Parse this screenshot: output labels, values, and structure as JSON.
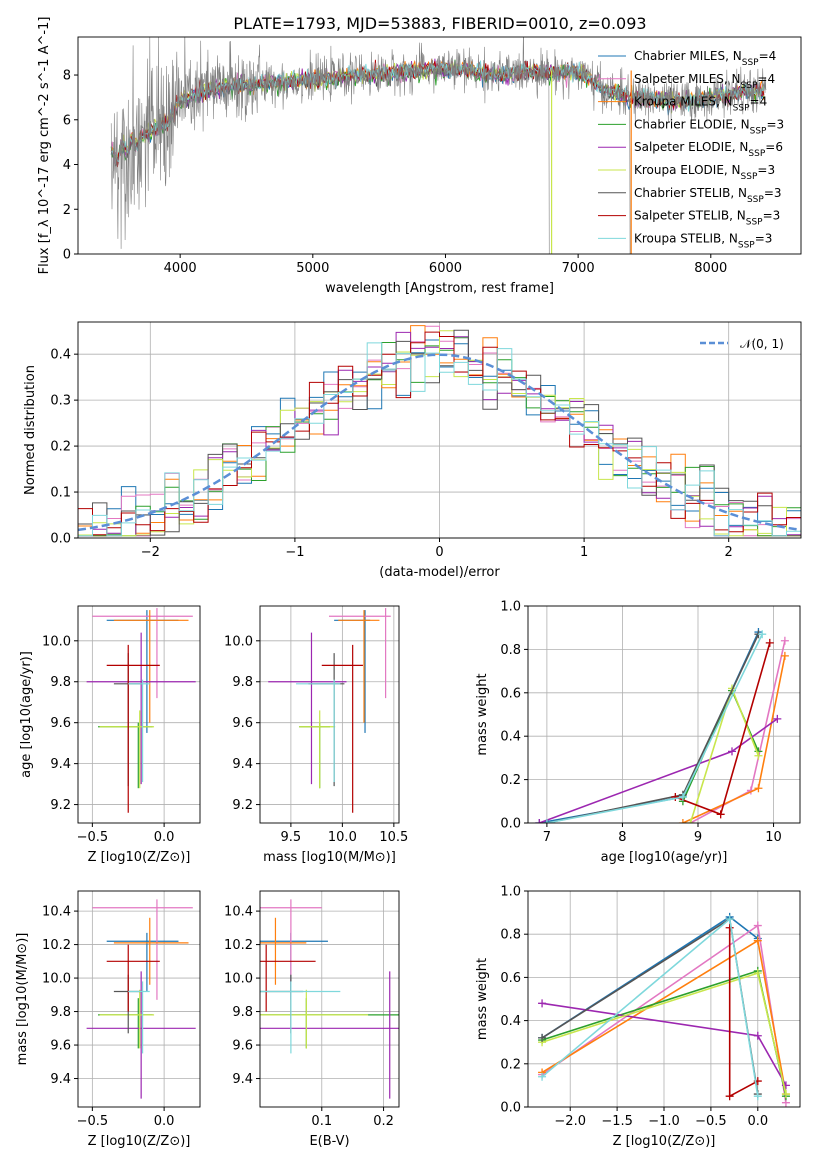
{
  "colors": {
    "Chabrier MILES": "#1f77b4",
    "Salpeter MILES": "#e377c2",
    "Kroupa MILES": "#ff7f0e",
    "Chabrier ELODIE": "#2ca02c",
    "Salpeter ELODIE": "#9c27b0",
    "Kroupa ELODIE": "#c8e64c",
    "Chabrier STELIB": "#555555",
    "Salpeter STELIB": "#b30000",
    "Kroupa STELIB": "#7fd8dc",
    "data": "#808080",
    "normal": "#5b8fd6"
  },
  "chart_data": [
    {
      "type": "line",
      "title": "PLATE=1793, MJD=53883, FIBERID=0010, z=0.093",
      "xlabel": "wavelength [Angstrom, rest frame]",
      "ylabel": "Flux [f_λ 10^-17 erg cm^-2 s^-1 A^-1]",
      "xlim": [
        3230,
        8680
      ],
      "ylim": [
        0,
        9.7
      ],
      "xticks": [
        4000,
        5000,
        6000,
        7000,
        8000
      ],
      "yticks": [
        0,
        2,
        4,
        6,
        8
      ],
      "legend": {
        "position": "top-right",
        "entries": [
          {
            "name": "Chabrier MILES",
            "n": "4"
          },
          {
            "name": "Salpeter MILES",
            "n": "4"
          },
          {
            "name": "Kroupa MILES",
            "n": "4"
          },
          {
            "name": "Chabrier ELODIE",
            "n": "3"
          },
          {
            "name": "Salpeter ELODIE",
            "n": "6"
          },
          {
            "name": "Kroupa ELODIE",
            "n": "3"
          },
          {
            "name": "Chabrier STELIB",
            "n": "3"
          },
          {
            "name": "Salpeter STELIB",
            "n": "3"
          },
          {
            "name": "Kroupa STELIB",
            "n": "3"
          }
        ]
      },
      "continuum": {
        "x": [
          3500,
          3600,
          3700,
          3800,
          3900,
          4000,
          4200,
          4400,
          4600,
          4800,
          5000,
          5200,
          5400,
          5600,
          5800,
          6000,
          6200,
          6400,
          6600,
          6800,
          7000,
          7200,
          7400,
          7600,
          7800,
          8000,
          8200,
          8400
        ],
        "y": [
          4.3,
          4.8,
          5.2,
          5.6,
          5.9,
          6.9,
          7.3,
          7.5,
          7.6,
          7.7,
          7.8,
          7.9,
          8.0,
          8.1,
          8.2,
          8.3,
          8.2,
          8.0,
          8.2,
          8.1,
          8.2,
          7.3,
          7.0,
          6.9,
          6.8,
          7.0,
          7.2,
          7.3
        ]
      }
    },
    {
      "type": "histogram",
      "xlabel": "(data-model)/error",
      "ylabel": "Normed distribution",
      "xlim": [
        -2.5,
        2.5
      ],
      "ylim": [
        0,
        0.47
      ],
      "xticks": [
        -2,
        -1,
        0,
        1,
        2
      ],
      "yticks": [
        0.0,
        0.1,
        0.2,
        0.3,
        0.4
      ],
      "legend": {
        "label": "𝒩(0, 1)",
        "position": "top-right"
      },
      "bin_width": 0.1,
      "bin_start": -2.5
    },
    {
      "type": "scatter",
      "xlabel": "Z [log10(Z/Z⊙)]",
      "ylabel": "age [log10(age/yr)]",
      "xlim": [
        -0.6,
        0.25
      ],
      "ylim": [
        9.11,
        10.17
      ],
      "xticks": [
        -0.5,
        0.0
      ],
      "yticks": [
        9.2,
        9.4,
        9.6,
        9.8,
        10.0
      ]
    },
    {
      "type": "scatter",
      "xlabel": "mass [log10(M/M⊙)]",
      "ylabel": "",
      "xlim": [
        9.2,
        10.55
      ],
      "ylim": [
        9.11,
        10.17
      ],
      "xticks": [
        9.5,
        10.0,
        10.5
      ],
      "yticks": [
        9.2,
        9.4,
        9.6,
        9.8,
        10.0
      ]
    },
    {
      "type": "line",
      "xlabel": "age [log10(age/yr)]",
      "ylabel": "mass weight",
      "xlim": [
        6.75,
        10.35
      ],
      "ylim": [
        0,
        1.0
      ],
      "xticks": [
        7,
        8,
        9,
        10
      ],
      "yticks": [
        0.0,
        0.2,
        0.4,
        0.6,
        0.8,
        1.0
      ]
    },
    {
      "type": "scatter",
      "xlabel": "Z [log10(Z/Z⊙)]",
      "ylabel": "mass [log10(M/M⊙)]",
      "xlim": [
        -0.6,
        0.25
      ],
      "ylim": [
        9.23,
        10.52
      ],
      "xticks": [
        -0.5,
        0.0
      ],
      "yticks": [
        9.4,
        9.6,
        9.8,
        10.0,
        10.2,
        10.4
      ]
    },
    {
      "type": "scatter",
      "xlabel": "E(B-V)",
      "ylabel": "",
      "xlim": [
        0.0,
        0.225
      ],
      "ylim": [
        9.23,
        10.52
      ],
      "xticks": [
        0.1,
        0.2
      ],
      "yticks": [
        9.4,
        9.6,
        9.8,
        10.0,
        10.2,
        10.4
      ]
    },
    {
      "type": "line",
      "xlabel": "Z [log10(Z/Z⊙)]",
      "ylabel": "mass weight",
      "xlim": [
        -2.45,
        0.45
      ],
      "ylim": [
        0,
        1.0
      ],
      "xticks": [
        -2.0,
        -1.5,
        -1.0,
        -0.5,
        0.0
      ],
      "yticks": [
        0.0,
        0.2,
        0.4,
        0.6,
        0.8,
        1.0
      ]
    }
  ],
  "models": [
    {
      "name": "Chabrier MILES",
      "Z": -0.12,
      "Zerr": [
        0.28,
        0.22
      ],
      "age": 10.1,
      "ageErr": [
        0.55,
        0.05
      ],
      "mass": 10.22,
      "massErr": [
        0.3,
        0.05
      ],
      "ebv": 0.05,
      "ebvErr": [
        0.25,
        0.06
      ],
      "ages": [
        6.9,
        8.8,
        9.8
      ],
      "wA": [
        0.0,
        0.12,
        0.88
      ],
      "Zs": [
        -2.3,
        -0.3,
        0.0
      ],
      "wZ": [
        0.32,
        0.88,
        0.78
      ]
    },
    {
      "name": "Salpeter MILES",
      "Z": -0.05,
      "Zerr": [
        0.45,
        0.25
      ],
      "age": 10.12,
      "ageErr": [
        0.4,
        0.04
      ],
      "mass": 10.42,
      "massErr": [
        0.55,
        0.05
      ],
      "ebv": 0.05,
      "ebvErr": [
        0.2,
        0.05
      ],
      "ages": [
        8.9,
        9.7,
        10.15
      ],
      "wA": [
        0.0,
        0.15,
        0.84
      ],
      "Zs": [
        -2.3,
        0.0,
        0.3
      ],
      "wZ": [
        0.15,
        0.84,
        0.02
      ]
    },
    {
      "name": "Kroupa MILES",
      "Z": -0.1,
      "Zerr": [
        0.25,
        0.27
      ],
      "age": 10.1,
      "ageErr": [
        0.5,
        0.05
      ],
      "mass": 10.21,
      "massErr": [
        0.25,
        0.15
      ],
      "ebv": 0.025,
      "ebvErr": [
        0.15,
        0.05
      ],
      "ages": [
        8.8,
        9.8,
        10.15
      ],
      "wA": [
        0.0,
        0.16,
        0.77
      ],
      "Zs": [
        -2.3,
        0.0,
        0.3
      ],
      "wZ": [
        0.16,
        0.77,
        0.06
      ]
    },
    {
      "name": "Chabrier ELODIE",
      "Z": -0.18,
      "Zerr": [
        0.28,
        0.1
      ],
      "age": 9.58,
      "ageErr": [
        0.3,
        0.02
      ],
      "mass": 9.78,
      "massErr": [
        0.2,
        0.1
      ],
      "ebv": 0.075,
      "ebvErr": [
        0.22,
        0.16
      ],
      "ages": [
        8.8,
        9.45,
        9.8
      ],
      "wA": [
        0.1,
        0.61,
        0.33
      ],
      "Zs": [
        -2.3,
        0.0,
        0.3
      ],
      "wZ": [
        0.31,
        0.63,
        0.05
      ]
    },
    {
      "name": "Salpeter ELODIE",
      "Z": -0.16,
      "Zerr": [
        0.38,
        0.38
      ],
      "age": 9.8,
      "ageErr": [
        0.5,
        0.24
      ],
      "mass": 9.7,
      "massErr": [
        0.42,
        0.34
      ],
      "ebv": 0.21,
      "ebvErr": [
        0.44,
        0.2
      ],
      "ages": [
        6.9,
        9.45,
        10.05
      ],
      "wA": [
        0.0,
        0.33,
        0.48
      ],
      "Zs": [
        -2.3,
        0.0,
        0.3
      ],
      "wZ": [
        0.48,
        0.33,
        0.1
      ]
    },
    {
      "name": "Kroupa ELODIE",
      "Z": -0.17,
      "Zerr": [
        0.28,
        0.1
      ],
      "age": 9.58,
      "ageErr": [
        0.3,
        0.08
      ],
      "mass": 9.78,
      "massErr": [
        0.2,
        0.15
      ],
      "ebv": 0.075,
      "ebvErr": [
        0.22,
        0.1
      ],
      "ages": [
        8.9,
        9.45,
        9.8
      ],
      "wA": [
        0.0,
        0.62,
        0.31
      ],
      "Zs": [
        -2.3,
        0.0,
        0.3
      ],
      "wZ": [
        0.3,
        0.62,
        0.06
      ]
    },
    {
      "name": "Chabrier STELIB",
      "Z": -0.25,
      "Zerr": [
        0.1,
        0.1
      ],
      "age": 9.79,
      "ageErr": [
        0.5,
        0.15
      ],
      "mass": 9.92,
      "massErr": [
        0.25,
        0.1
      ],
      "ebv": 0.05,
      "ebvErr": [
        0.2,
        0.02
      ],
      "ages": [
        7.0,
        8.8,
        9.8
      ],
      "wA": [
        0.0,
        0.13,
        0.87
      ],
      "Zs": [
        -2.3,
        -0.3,
        0.0
      ],
      "wZ": [
        0.32,
        0.87,
        0.06
      ]
    },
    {
      "name": "Salpeter STELIB",
      "Z": -0.25,
      "Zerr": [
        0.15,
        0.22
      ],
      "age": 9.88,
      "ageErr": [
        0.72,
        0.1
      ],
      "mass": 10.1,
      "massErr": [
        0.3,
        0.1
      ],
      "ebv": 0.01,
      "ebvErr": [
        0.42,
        0.08
      ],
      "ages": [
        8.7,
        9.3,
        9.95
      ],
      "wA": [
        0.12,
        0.04,
        0.83
      ],
      "Zs": [
        -0.3,
        -0.3,
        0.0
      ],
      "wZ": [
        0.83,
        0.05,
        0.12
      ]
    },
    {
      "name": "Kroupa STELIB",
      "Z": -0.15,
      "Zerr": [
        0.1,
        0.05
      ],
      "age": 9.79,
      "ageErr": [
        0.48,
        0.02
      ],
      "mass": 9.92,
      "massErr": [
        0.37,
        0.06
      ],
      "ebv": 0.05,
      "ebvErr": [
        0.2,
        0.08
      ],
      "ages": [
        7.0,
        8.8,
        9.85
      ],
      "wA": [
        0.0,
        0.12,
        0.87
      ],
      "Zs": [
        -2.3,
        -0.3,
        0.0
      ],
      "wZ": [
        0.14,
        0.87,
        0.05
      ]
    }
  ]
}
